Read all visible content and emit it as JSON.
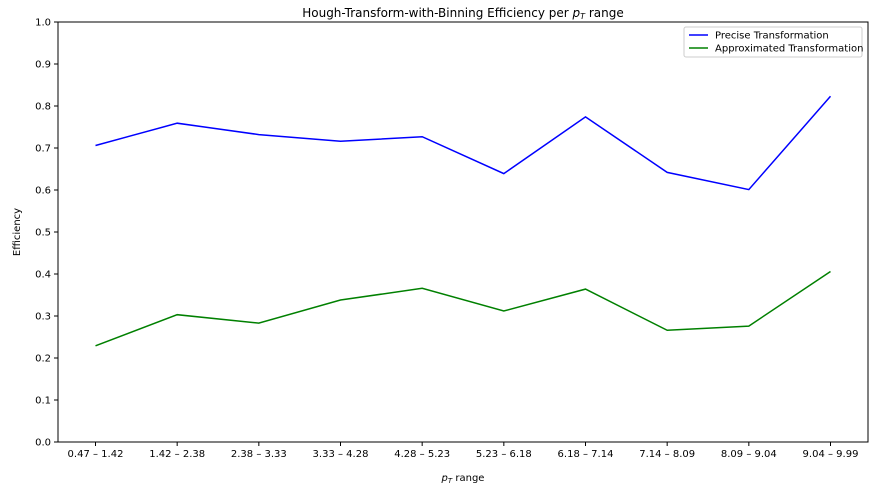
{
  "chart_data": {
    "type": "line",
    "title": "Hough-Transform-with-Binning Efficiency per ",
    "title_math": "p",
    "title_math_sub": "T",
    "title_suffix": " range",
    "xlabel_math": "p",
    "xlabel_math_sub": "T",
    "xlabel_suffix": " range",
    "ylabel": "Efficiency",
    "ylim": [
      0.0,
      1.0
    ],
    "yticks": [
      "0.0",
      "0.1",
      "0.2",
      "0.3",
      "0.4",
      "0.5",
      "0.6",
      "0.7",
      "0.8",
      "0.9",
      "1.0"
    ],
    "categories": [
      "0.47 – 1.42",
      "1.42 – 2.38",
      "2.38 – 3.33",
      "3.33 – 4.28",
      "4.28 – 5.23",
      "5.23 – 6.18",
      "6.18 – 7.14",
      "7.14 – 8.09",
      "8.09 – 9.04",
      "9.04 – 9.99"
    ],
    "series": [
      {
        "name": "Precise Transformation",
        "color": "#0000ff",
        "values": [
          0.706,
          0.759,
          0.732,
          0.716,
          0.727,
          0.639,
          0.774,
          0.642,
          0.601,
          0.823
        ]
      },
      {
        "name": "Approximated Transformation",
        "color": "#008000",
        "values": [
          0.229,
          0.303,
          0.283,
          0.338,
          0.366,
          0.312,
          0.364,
          0.266,
          0.276,
          0.406
        ]
      }
    ],
    "legend": "top-right",
    "grid": false
  }
}
